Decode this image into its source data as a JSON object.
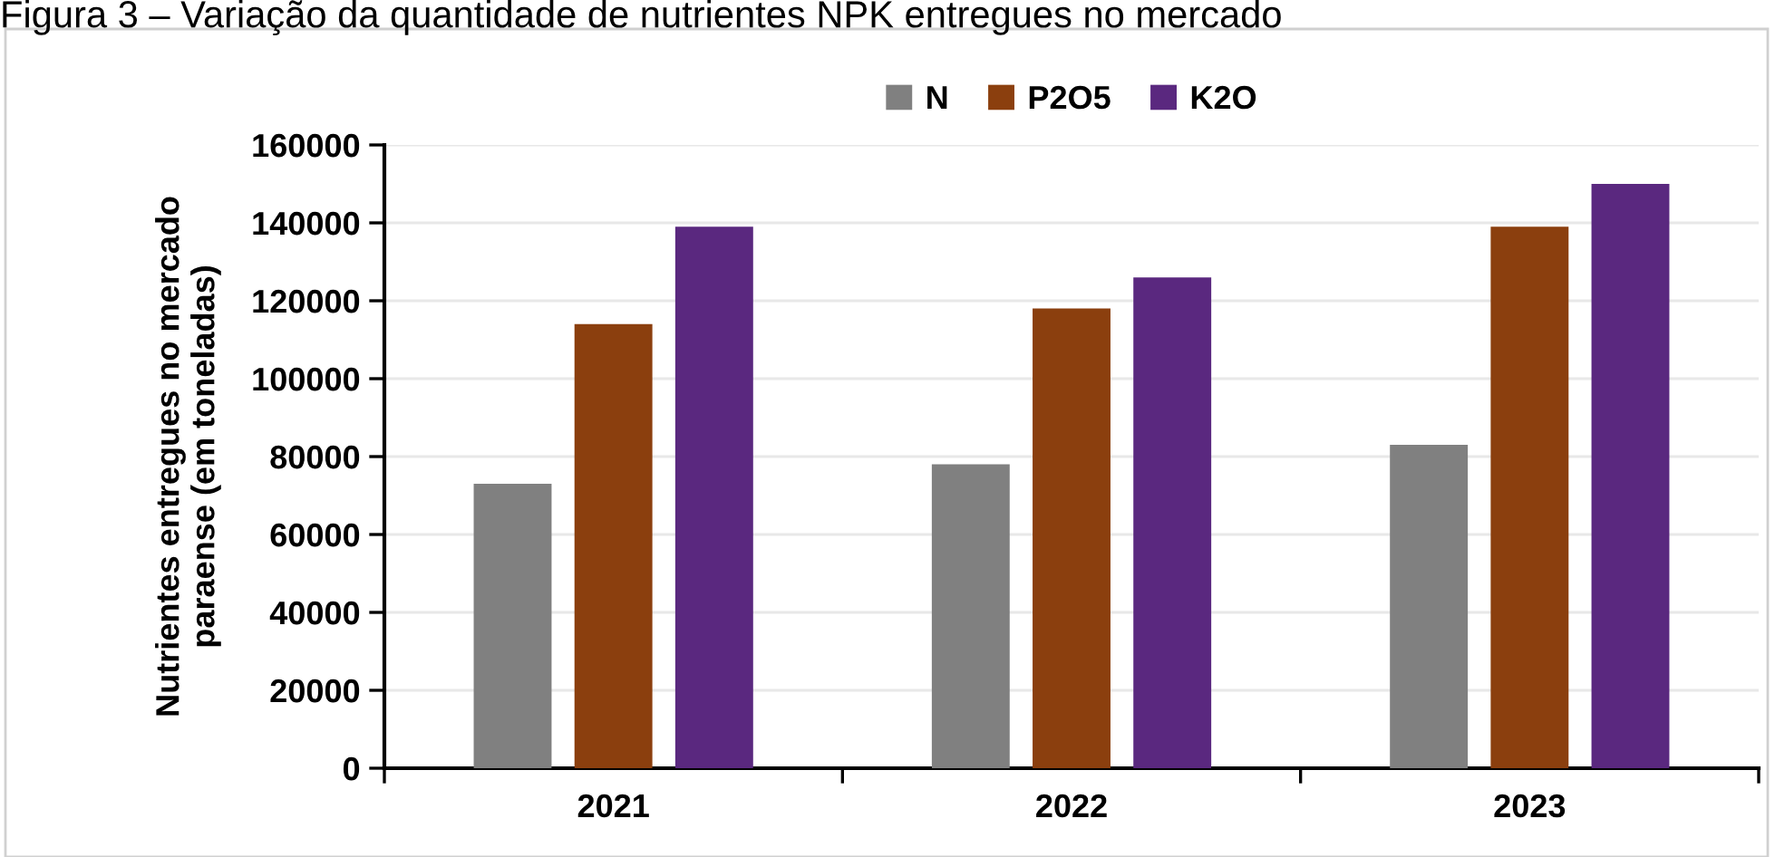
{
  "chart_data": {
    "type": "bar",
    "title": "Figura 3 – Variação da quantidade de nutrientes NPK entregues no mercado",
    "ylabel": "Nutrientes entregues no mercado\nparaense (em toneladas)",
    "categories": [
      "2021",
      "2022",
      "2023"
    ],
    "series": [
      {
        "name": "N",
        "color": "#808080",
        "values": [
          73000,
          78000,
          83000
        ]
      },
      {
        "name": "P2O5",
        "color": "#8b3f0e",
        "values": [
          114000,
          118000,
          139000
        ]
      },
      {
        "name": "K2O",
        "color": "#5a287f",
        "values": [
          139000,
          126000,
          150000
        ]
      }
    ],
    "ylim": [
      0,
      160000
    ],
    "yticks": [
      0,
      20000,
      40000,
      60000,
      80000,
      100000,
      120000,
      140000,
      160000
    ],
    "grid": "y",
    "legend": "top"
  }
}
